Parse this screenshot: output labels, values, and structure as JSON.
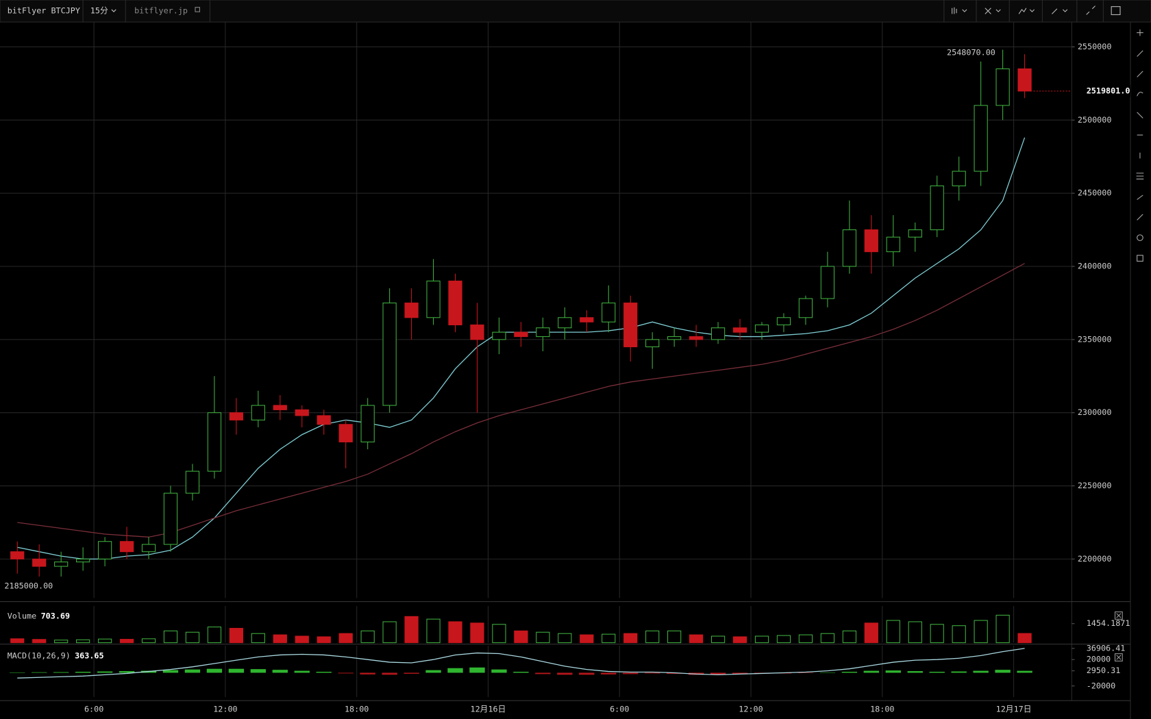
{
  "toolbar": {
    "symbol": "bitFlyer BTCJPY",
    "interval": "15分",
    "site": "bitflyer.jp"
  },
  "chart_data": [
    {
      "type": "candlestick",
      "xlim": [
        1.71,
        50.65
      ],
      "xticks": [
        {
          "value": 6,
          "label": "6:00"
        },
        {
          "value": 12,
          "label": "12:00"
        },
        {
          "value": 18,
          "label": "18:00"
        },
        {
          "value": 24,
          "label": "12月16日"
        },
        {
          "value": 30,
          "label": "6:00"
        },
        {
          "value": 36,
          "label": "12:00"
        },
        {
          "value": 42,
          "label": "18:00"
        },
        {
          "value": 48,
          "label": "12月17日"
        }
      ],
      "ylim": [
        2173400,
        2567000
      ],
      "yticks": [
        2200000,
        2250000,
        2300000,
        2350000,
        2400000,
        2450000,
        2500000,
        2550000
      ],
      "grid": true,
      "up_color": "#3fae3f",
      "down_color": "#c8161d",
      "x": [
        2.5,
        3.5,
        4.5,
        5.5,
        6.5,
        7.5,
        8.5,
        9.5,
        10.5,
        11.5,
        12.5,
        13.5,
        14.5,
        15.5,
        16.5,
        17.5,
        18.5,
        19.5,
        20.5,
        21.5,
        22.5,
        23.5,
        24.5,
        25.5,
        26.5,
        27.5,
        28.5,
        29.5,
        30.5,
        31.5,
        32.5,
        33.5,
        34.5,
        35.5,
        36.5,
        37.5,
        38.5,
        39.5,
        40.5,
        41.5,
        42.5,
        43.5,
        44.5,
        45.5,
        46.5,
        47.5,
        48.5
      ],
      "candles": [
        [
          2205000,
          2212000,
          2190000,
          2200000
        ],
        [
          2200000,
          2210000,
          2188000,
          2195000
        ],
        [
          2195000,
          2205000,
          2188000,
          2198000
        ],
        [
          2198000,
          2208000,
          2192000,
          2200000
        ],
        [
          2200000,
          2215000,
          2195000,
          2212000
        ],
        [
          2212000,
          2222000,
          2200000,
          2205000
        ],
        [
          2205000,
          2215000,
          2200000,
          2210000
        ],
        [
          2210000,
          2250000,
          2205000,
          2245000
        ],
        [
          2245000,
          2265000,
          2240000,
          2260000
        ],
        [
          2260000,
          2325000,
          2255000,
          2300000
        ],
        [
          2300000,
          2310000,
          2285000,
          2295000
        ],
        [
          2295000,
          2315000,
          2290000,
          2305000
        ],
        [
          2305000,
          2312000,
          2295000,
          2302000
        ],
        [
          2302000,
          2305000,
          2290000,
          2298000
        ],
        [
          2298000,
          2302000,
          2285000,
          2292000
        ],
        [
          2292000,
          2295000,
          2262000,
          2280000
        ],
        [
          2280000,
          2310000,
          2275000,
          2305000
        ],
        [
          2305000,
          2385000,
          2300000,
          2375000
        ],
        [
          2375000,
          2385000,
          2350000,
          2365000
        ],
        [
          2365000,
          2405000,
          2360000,
          2390000
        ],
        [
          2390000,
          2395000,
          2355000,
          2360000
        ],
        [
          2360000,
          2375000,
          2300000,
          2350000
        ],
        [
          2350000,
          2365000,
          2340000,
          2355000
        ],
        [
          2355000,
          2362000,
          2345000,
          2352000
        ],
        [
          2352000,
          2365000,
          2342000,
          2358000
        ],
        [
          2358000,
          2372000,
          2350000,
          2365000
        ],
        [
          2365000,
          2370000,
          2355000,
          2362000
        ],
        [
          2362000,
          2387000,
          2355000,
          2375000
        ],
        [
          2375000,
          2380000,
          2335000,
          2345000
        ],
        [
          2345000,
          2355000,
          2330000,
          2350000
        ],
        [
          2350000,
          2358000,
          2345000,
          2352000
        ],
        [
          2352000,
          2360000,
          2345000,
          2350000
        ],
        [
          2350000,
          2362000,
          2347000,
          2358000
        ],
        [
          2358000,
          2364000,
          2350000,
          2355000
        ],
        [
          2355000,
          2362000,
          2350000,
          2360000
        ],
        [
          2360000,
          2368000,
          2355000,
          2365000
        ],
        [
          2365000,
          2380000,
          2360000,
          2378000
        ],
        [
          2378000,
          2410000,
          2372000,
          2400000
        ],
        [
          2400000,
          2445000,
          2395000,
          2425000
        ],
        [
          2425000,
          2435000,
          2395000,
          2410000
        ],
        [
          2410000,
          2435000,
          2400000,
          2420000
        ],
        [
          2420000,
          2430000,
          2410000,
          2425000
        ],
        [
          2425000,
          2462000,
          2420000,
          2455000
        ],
        [
          2455000,
          2475000,
          2445000,
          2465000
        ],
        [
          2465000,
          2540000,
          2455000,
          2510000
        ],
        [
          2510000,
          2548070,
          2500000,
          2535000
        ],
        [
          2535000,
          2545000,
          2515000,
          2519801
        ]
      ],
      "series": [
        {
          "color": "#7fd0d6",
          "values": [
            2208000,
            2205000,
            2202000,
            2200000,
            2200000,
            2202000,
            2203000,
            2206000,
            2215000,
            2228000,
            2245000,
            2262000,
            2275000,
            2285000,
            2292000,
            2295000,
            2293000,
            2290000,
            2295000,
            2310000,
            2330000,
            2345000,
            2355000,
            2355000,
            2355000,
            2355000,
            2355000,
            2356000,
            2358000,
            2362000,
            2358000,
            2355000,
            2353000,
            2352000,
            2352000,
            2353000,
            2354000,
            2356000,
            2360000,
            2368000,
            2380000,
            2392000,
            2402000,
            2412000,
            2425000,
            2445000,
            2488000
          ]
        },
        {
          "color": "#7a2f3a",
          "values": [
            2225000,
            2223000,
            2221000,
            2219000,
            2217000,
            2216000,
            2215000,
            2218000,
            2223000,
            2228000,
            2233000,
            2237000,
            2241000,
            2245000,
            2249000,
            2253000,
            2258000,
            2265000,
            2272000,
            2280000,
            2287000,
            2293000,
            2298000,
            2302000,
            2306000,
            2310000,
            2314000,
            2318000,
            2321000,
            2323000,
            2325000,
            2327000,
            2329000,
            2331000,
            2333000,
            2336000,
            2340000,
            2344000,
            2348000,
            2352000,
            2357000,
            2363000,
            2370000,
            2378000,
            2386000,
            2394000,
            2402000
          ]
        }
      ],
      "high_marker": {
        "value": 2548070,
        "label": "2548070.00"
      },
      "low_marker": {
        "value": 2185000,
        "label": "2185000.00"
      },
      "last_price": {
        "value": 2519801,
        "label": "2519801.0"
      }
    },
    {
      "type": "bar",
      "title": "Volume",
      "current_value": 703.69,
      "ylim": [
        0,
        2800
      ],
      "yticks": [
        1454.1871
      ],
      "values": [
        300,
        250,
        200,
        220,
        280,
        260,
        300,
        900,
        800,
        1200,
        1100,
        700,
        600,
        500,
        450,
        700,
        900,
        1600,
        2000,
        1800,
        1600,
        1500,
        1400,
        900,
        800,
        700,
        600,
        650,
        700,
        900,
        900,
        600,
        500,
        450,
        500,
        550,
        600,
        700,
        900,
        1500,
        1700,
        1600,
        1400,
        1300,
        1700,
        2100,
        703.69
      ]
    },
    {
      "type": "bar",
      "title": "MACD(10,26,9)",
      "current_value": 363.65,
      "ylim": [
        -36700,
        41100
      ],
      "yticks": [
        36906.41,
        20000,
        2950.31,
        -20000
      ],
      "series": [
        {
          "type": "bar",
          "color": "#2fb52f",
          "neg_color": "#b3161c",
          "values": [
            500,
            800,
            1000,
            1500,
            2000,
            2500,
            3000,
            4000,
            5000,
            6000,
            6000,
            5500,
            4500,
            3000,
            1500,
            -1000,
            -2500,
            -3000,
            -1500,
            4000,
            7000,
            8000,
            5000,
            1500,
            -2000,
            -3000,
            -3000,
            -2500,
            -2000,
            -1000,
            -1500,
            -3000,
            -2500,
            -2000,
            -1500,
            -1000,
            -500,
            0,
            1500,
            3000,
            3500,
            2500,
            1500,
            2000,
            3000,
            4500,
            2950.31
          ]
        },
        {
          "type": "line",
          "color": "#a9d8e0",
          "values": [
            -8000,
            -7000,
            -6000,
            -5000,
            -3000,
            -1000,
            2000,
            5000,
            9000,
            14000,
            19000,
            24000,
            27000,
            28000,
            27000,
            24000,
            20000,
            16000,
            15000,
            20000,
            27000,
            30000,
            29000,
            24000,
            17000,
            10000,
            5000,
            2000,
            1000,
            1000,
            0,
            -2000,
            -3000,
            -2000,
            -1000,
            0,
            1000,
            3000,
            6000,
            11000,
            16000,
            19000,
            20000,
            22000,
            26000,
            32000,
            36906.41
          ]
        }
      ]
    }
  ]
}
